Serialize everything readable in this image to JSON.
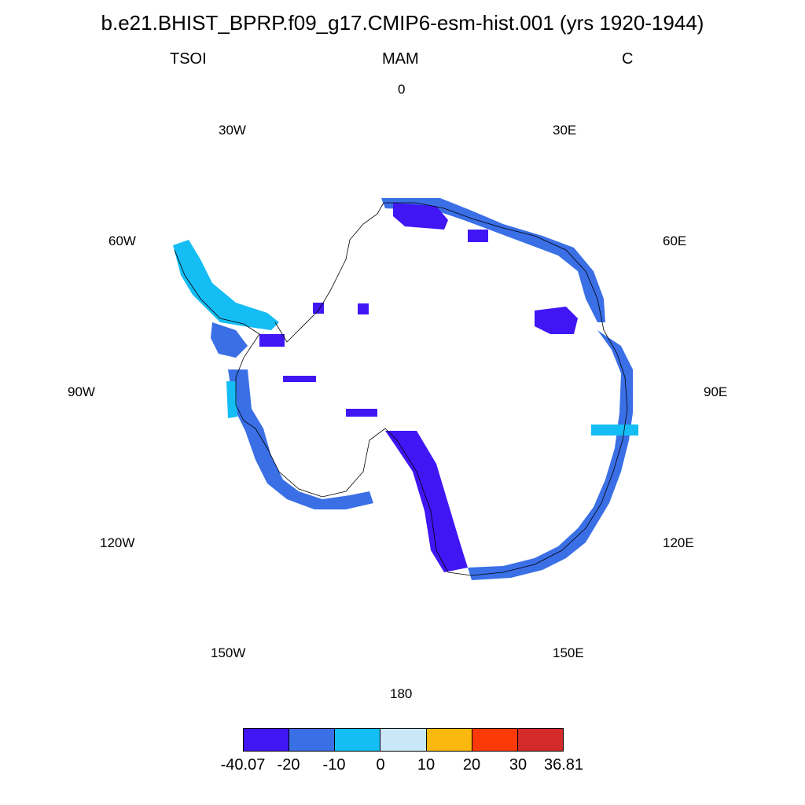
{
  "title": "b.e21.BHIST_BPRP.f09_g17.CMIP6-esm-hist.001 (yrs 1920-1944)",
  "subtitle": {
    "left": "TSOI",
    "center": "MAM",
    "right": "C"
  },
  "longitude_labels": [
    "0",
    "30E",
    "60E",
    "90E",
    "120E",
    "150E",
    "180",
    "150W",
    "120W",
    "90W",
    "60W",
    "30W"
  ],
  "colorbar": {
    "colors": [
      "#4016f5",
      "#3a6fe6",
      "#14bdf4",
      "#c8e8f7",
      "#fbb80f",
      "#fb3a08",
      "#d52a2a"
    ],
    "labels": [
      "-40.07",
      "-20",
      "-10",
      "0",
      "10",
      "20",
      "30",
      "36.81"
    ]
  },
  "map_data": {
    "projection": "south-polar-stereographic",
    "variable": "TSOI",
    "season": "MAM",
    "units": "C",
    "range": [
      -40.07,
      36.81
    ]
  }
}
